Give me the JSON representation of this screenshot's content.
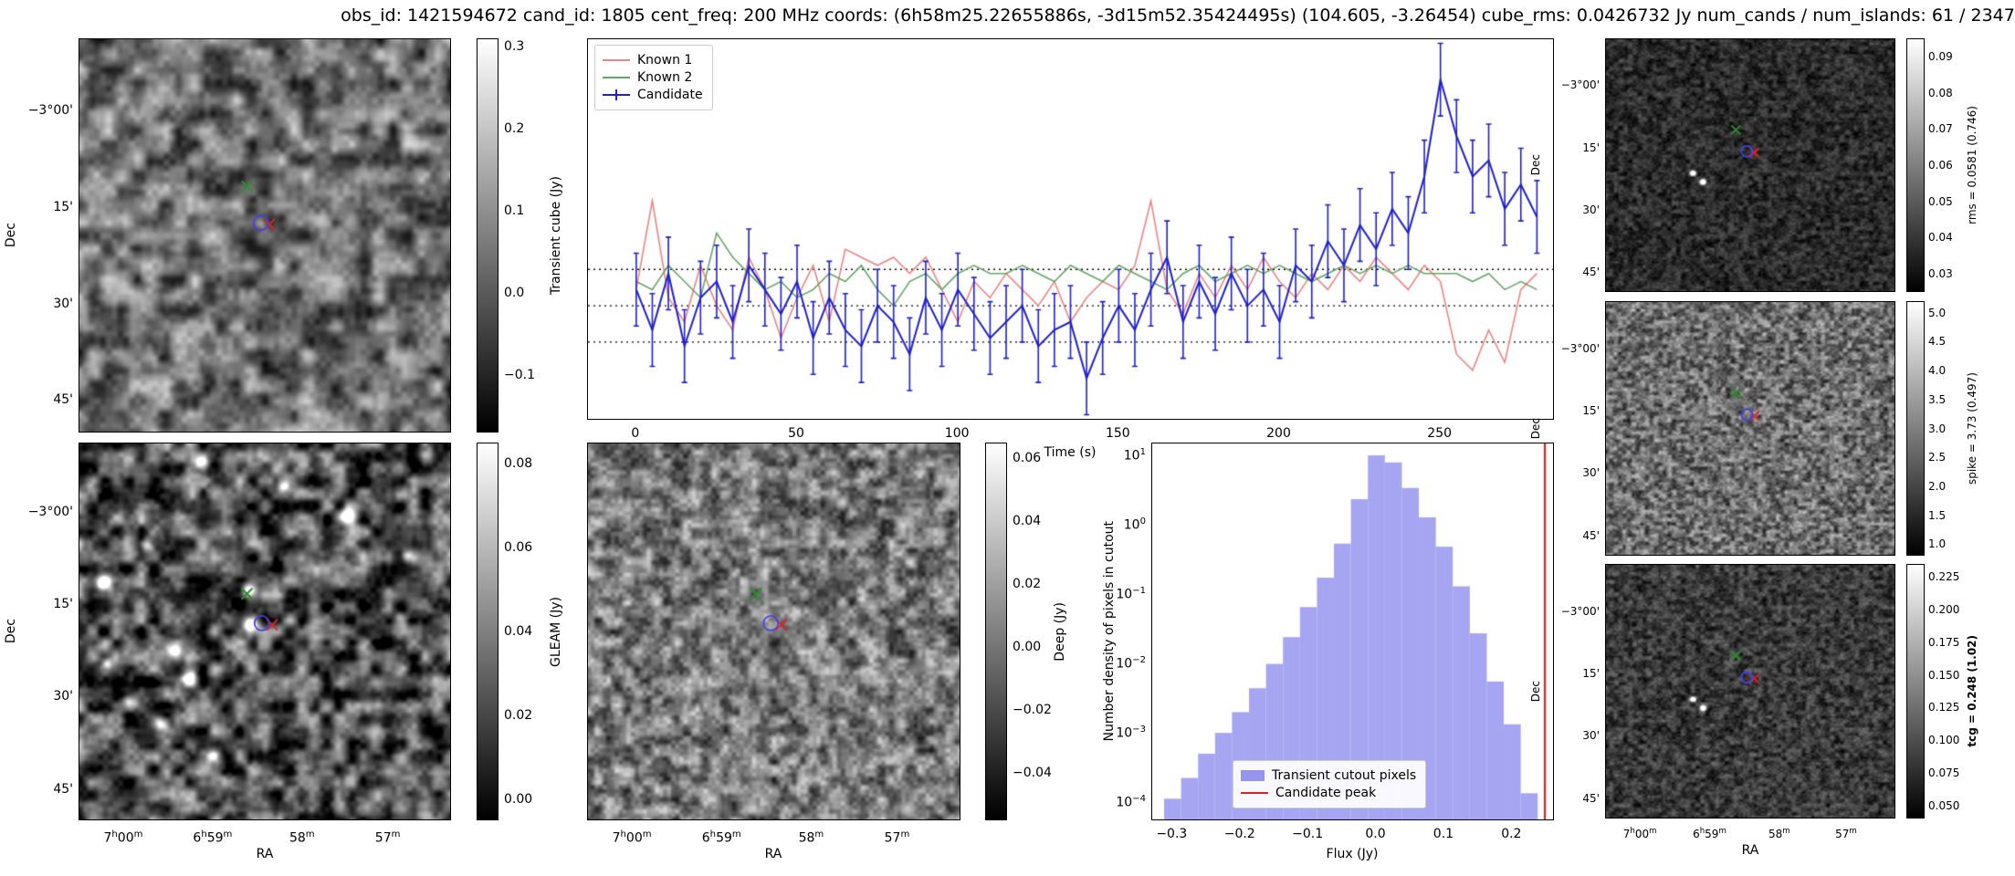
{
  "title": "obs_id: 1421594672 cand_id: 1805 cent_freq: 200 MHz coords: (6h58m25.22655886s, -3d15m52.35424495s) (104.605, -3.26454) cube_rms: 0.0426732 Jy num_cands / num_islands: 61 / 2347",
  "axes": {
    "ra_label": "RA",
    "dec_label": "Dec",
    "ra_ticks": [
      "7h00m",
      "6h59m",
      "58m",
      "57m"
    ],
    "ra_tick_pos": [
      0.12,
      0.36,
      0.6,
      0.83
    ],
    "dec_ticks": [
      "-3°00'",
      "15'",
      "30'",
      "45'"
    ],
    "dec_tick_pos": [
      0.185,
      0.43,
      0.675,
      0.92
    ]
  },
  "chart_data": [
    {
      "id": "lightcurve",
      "type": "line",
      "xlabel": "Time (s)",
      "x_ticks": [
        0,
        50,
        100,
        150,
        200,
        250
      ],
      "xlim": [
        -15,
        285
      ],
      "ylim": [
        -0.14,
        0.33
      ],
      "thresholds": [
        0.045,
        0.0,
        -0.045
      ],
      "legend_position": "upper left",
      "x": [
        0,
        5,
        10,
        15,
        20,
        25,
        30,
        35,
        40,
        45,
        50,
        55,
        60,
        65,
        70,
        75,
        80,
        85,
        90,
        95,
        100,
        105,
        110,
        115,
        120,
        125,
        130,
        135,
        140,
        145,
        150,
        155,
        160,
        165,
        170,
        175,
        180,
        185,
        190,
        195,
        200,
        205,
        210,
        215,
        220,
        225,
        230,
        235,
        240,
        245,
        250,
        255,
        260,
        265,
        270,
        275,
        280
      ],
      "series": [
        {
          "name": "Known 1",
          "color": "#ec8482",
          "values": [
            0.02,
            0.13,
            0.01,
            -0.02,
            0.05,
            0.0,
            -0.03,
            0.06,
            0.02,
            -0.04,
            0.01,
            0.05,
            -0.02,
            0.07,
            0.06,
            0.05,
            0.06,
            0.04,
            0.06,
            0.02,
            -0.02,
            0.03,
            0.01,
            0.04,
            0.02,
            0.0,
            0.03,
            -0.02,
            0.01,
            0.03,
            0.02,
            0.05,
            0.13,
            0.02,
            -0.01,
            0.04,
            0.01,
            0.05,
            0.02,
            0.06,
            0.03,
            0.01,
            0.04,
            0.02,
            0.05,
            0.03,
            0.06,
            0.04,
            0.02,
            0.05,
            0.03,
            -0.06,
            -0.08,
            -0.03,
            -0.07,
            0.02,
            0.04
          ]
        },
        {
          "name": "Known 2",
          "color": "#63a663",
          "values": [
            0.03,
            0.02,
            0.05,
            0.03,
            0.01,
            0.09,
            0.06,
            0.04,
            0.02,
            0.03,
            0.01,
            0.02,
            0.04,
            0.03,
            0.05,
            0.02,
            0.0,
            0.03,
            0.04,
            0.02,
            0.04,
            0.05,
            0.04,
            0.04,
            0.05,
            0.04,
            0.03,
            0.05,
            0.04,
            0.03,
            0.05,
            0.04,
            0.03,
            0.02,
            0.04,
            0.05,
            0.03,
            0.04,
            0.05,
            0.04,
            0.05,
            0.04,
            0.03,
            0.04,
            0.05,
            0.04,
            0.05,
            0.04,
            0.05,
            0.04,
            0.04,
            0.04,
            0.03,
            0.04,
            0.02,
            0.03,
            0.02
          ]
        },
        {
          "name": "Candidate",
          "color": "#1f1fcc",
          "yerr": 0.045,
          "values": [
            0.02,
            -0.03,
            0.04,
            -0.05,
            0.01,
            0.03,
            -0.02,
            0.05,
            0.02,
            -0.01,
            0.03,
            -0.04,
            0.01,
            -0.03,
            -0.05,
            0.0,
            -0.02,
            -0.06,
            0.01,
            -0.03,
            0.02,
            -0.01,
            -0.04,
            -0.02,
            0.0,
            -0.05,
            -0.03,
            -0.02,
            -0.09,
            -0.04,
            0.0,
            -0.03,
            0.02,
            0.06,
            -0.02,
            0.03,
            -0.01,
            0.04,
            0.0,
            0.02,
            -0.02,
            0.05,
            0.03,
            0.08,
            0.05,
            0.1,
            0.07,
            0.12,
            0.09,
            0.16,
            0.28,
            0.21,
            0.16,
            0.18,
            0.12,
            0.15,
            0.11
          ]
        }
      ]
    },
    {
      "id": "flux_histogram",
      "type": "bar",
      "xlabel": "Flux (Jy)",
      "ylabel": "Number density of pixels in cutout",
      "x_ticks": [
        "-0.3",
        "-0.2",
        "-0.1",
        "0.0",
        "0.1",
        "0.2"
      ],
      "y_tick_exponents": [
        1,
        0,
        -1,
        -2,
        -3,
        -4
      ],
      "xlim": [
        -0.33,
        0.26
      ],
      "log_top": 1.15,
      "log_bottom": -4.3,
      "bin_width": 0.025,
      "bin_centers": [
        -0.3,
        -0.275,
        -0.25,
        -0.225,
        -0.2,
        -0.175,
        -0.15,
        -0.125,
        -0.1,
        -0.075,
        -0.05,
        -0.025,
        0.0,
        0.025,
        0.05,
        0.075,
        0.1,
        0.125,
        0.15,
        0.175,
        0.2,
        0.225
      ],
      "values": [
        0.0001,
        0.0002,
        0.00045,
        0.0009,
        0.0018,
        0.004,
        0.009,
        0.022,
        0.06,
        0.16,
        0.5,
        2.2,
        9.5,
        7.5,
        3.2,
        1.2,
        0.45,
        0.12,
        0.025,
        0.005,
        0.0012,
        0.00012
      ],
      "candidate_peak": 0.248,
      "fill_color": "#9595ee",
      "line_color": "#dd2222",
      "legend": [
        "Transient cutout pixels",
        "Candidate peak"
      ]
    },
    {
      "id": "transient_cube",
      "type": "heatmap",
      "cbar_label": "Transient cube (Jy)",
      "cbar_ticks": [
        "0.3",
        "0.2",
        "0.1",
        "0.0",
        "-0.1"
      ],
      "vmin": -0.17,
      "vmax": 0.31,
      "markers": {
        "known2_x": [
          0.452,
          0.375
        ],
        "candidate_circle": [
          0.49,
          0.468
        ],
        "known1_x": [
          0.512,
          0.472
        ]
      }
    },
    {
      "id": "gleam",
      "type": "heatmap",
      "cbar_label": "GLEAM (Jy)",
      "cbar_ticks": [
        "0.08",
        "0.06",
        "0.04",
        "0.02",
        "0.00"
      ],
      "vmin": -0.005,
      "vmax": 0.085,
      "markers": {
        "known2_x": [
          0.452,
          0.4
        ],
        "candidate_circle": [
          0.492,
          0.478
        ],
        "known1_x": [
          0.52,
          0.482
        ]
      }
    },
    {
      "id": "deep",
      "type": "heatmap",
      "cbar_label": "Deep (Jy)",
      "cbar_ticks": [
        "0.06",
        "0.04",
        "0.02",
        "0.00",
        "-0.02",
        "-0.04"
      ],
      "vmin": -0.055,
      "vmax": 0.065,
      "markers": {
        "known2_x": [
          0.452,
          0.4
        ],
        "candidate_circle": [
          0.492,
          0.478
        ],
        "known1_x": [
          0.52,
          0.482
        ]
      }
    },
    {
      "id": "rms",
      "type": "heatmap",
      "cbar_label": "rms = 0.0581 (0.746)",
      "cbar_ticks": [
        "0.09",
        "0.08",
        "0.07",
        "0.06",
        "0.05",
        "0.04",
        "0.03"
      ],
      "vmin": 0.025,
      "vmax": 0.095,
      "markers": {
        "known2_x": [
          0.45,
          0.36
        ],
        "candidate_circle": [
          0.488,
          0.445
        ],
        "known1_x": [
          0.515,
          0.45
        ]
      }
    },
    {
      "id": "spike",
      "type": "heatmap",
      "cbar_label": "spike = 3.73 (0.497)",
      "cbar_ticks": [
        "5.0",
        "4.5",
        "4.0",
        "3.5",
        "3.0",
        "2.5",
        "2.0",
        "1.5",
        "1.0"
      ],
      "vmin": 0.8,
      "vmax": 5.2,
      "markers": {
        "known2_x": [
          0.45,
          0.36
        ],
        "candidate_circle": [
          0.488,
          0.445
        ],
        "known1_x": [
          0.515,
          0.45
        ]
      }
    },
    {
      "id": "tcg",
      "type": "heatmap",
      "cbar_label": "tcg = 0.248 (1.02)",
      "cbar_ticks": [
        "0.225",
        "0.200",
        "0.175",
        "0.150",
        "0.125",
        "0.100",
        "0.075",
        "0.050"
      ],
      "vmin": 0.04,
      "vmax": 0.235,
      "markers": {
        "known2_x": [
          0.45,
          0.36
        ],
        "candidate_circle": [
          0.488,
          0.445
        ],
        "known1_x": [
          0.515,
          0.45
        ]
      }
    }
  ]
}
